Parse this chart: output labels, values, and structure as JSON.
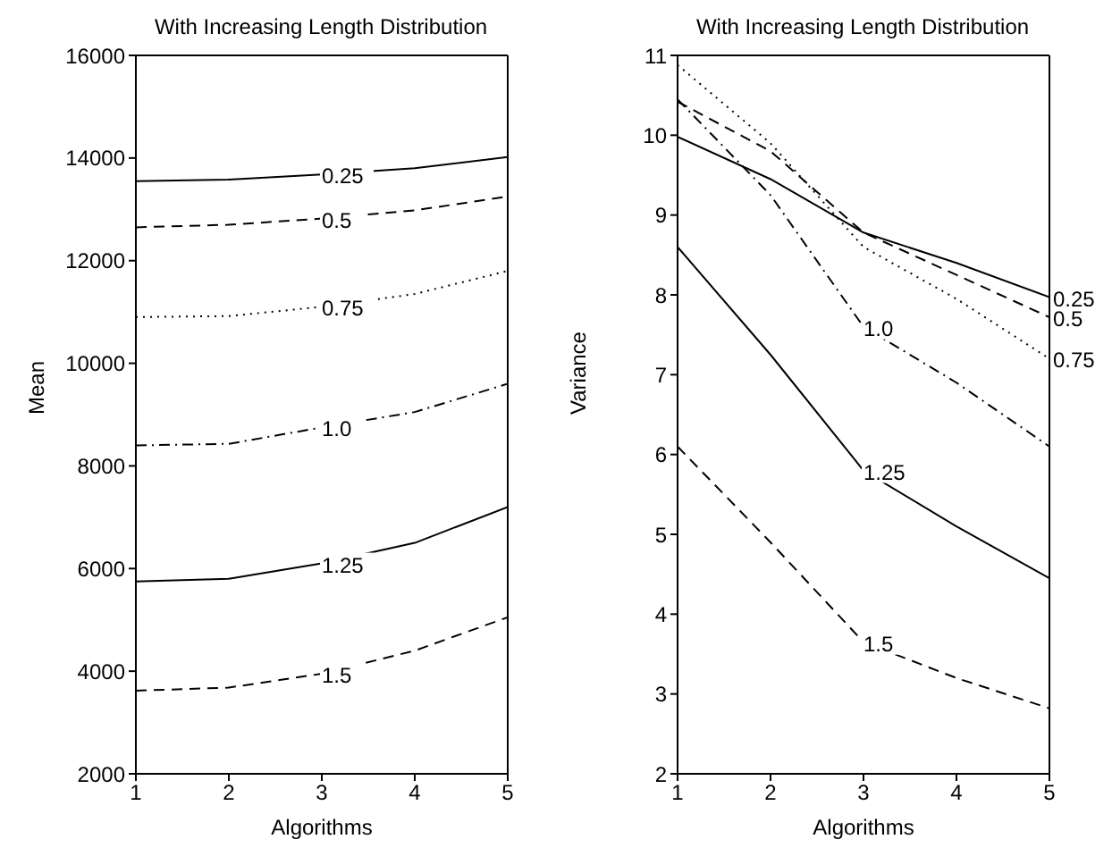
{
  "chart_data": [
    {
      "type": "line",
      "title": "With Increasing Length Distribution",
      "xlabel": "Algorithms",
      "ylabel": "Mean",
      "x": [
        1,
        2,
        3,
        4,
        5
      ],
      "xlim": [
        1,
        5
      ],
      "xticks": [
        1,
        2,
        3,
        4,
        5
      ],
      "ylim": [
        2000,
        16000
      ],
      "yticks": [
        2000,
        4000,
        6000,
        8000,
        10000,
        12000,
        14000,
        16000
      ],
      "series": [
        {
          "name": "0.25",
          "color": "#000000",
          "line_style": "solid",
          "values": [
            13550,
            13580,
            13680,
            13800,
            14020
          ]
        },
        {
          "name": "0.5",
          "color": "#000000",
          "line_style": "dashed",
          "values": [
            12650,
            12700,
            12820,
            12980,
            13250
          ]
        },
        {
          "name": "0.75",
          "color": "#000000",
          "line_style": "dotted",
          "values": [
            10900,
            10920,
            11100,
            11350,
            11800
          ]
        },
        {
          "name": "1.0",
          "color": "#000000",
          "line_style": "dashdot",
          "values": [
            8400,
            8430,
            8750,
            9050,
            9600
          ]
        },
        {
          "name": "1.25",
          "color": "#000000",
          "line_style": "solid",
          "values": [
            5750,
            5800,
            6100,
            6500,
            7200
          ]
        },
        {
          "name": "1.5",
          "color": "#000000",
          "line_style": "dashed",
          "values": [
            3620,
            3680,
            3950,
            4400,
            5050
          ]
        }
      ]
    },
    {
      "type": "line",
      "title": "With Increasing Length Distribution",
      "xlabel": "Algorithms",
      "ylabel": "Variance",
      "x": [
        1,
        2,
        3,
        4,
        5
      ],
      "xlim": [
        1,
        5
      ],
      "xticks": [
        1,
        2,
        3,
        4,
        5
      ],
      "ylim": [
        2,
        11
      ],
      "yticks": [
        2,
        3,
        4,
        5,
        6,
        7,
        8,
        9,
        10,
        11
      ],
      "series": [
        {
          "name": "0.25",
          "color": "#000000",
          "line_style": "solid",
          "values": [
            9.98,
            9.45,
            8.78,
            8.4,
            7.97
          ]
        },
        {
          "name": "0.5",
          "color": "#000000",
          "line_style": "dashed",
          "values": [
            10.42,
            9.8,
            8.78,
            8.25,
            7.72
          ]
        },
        {
          "name": "0.75",
          "color": "#000000",
          "line_style": "dotted",
          "values": [
            10.88,
            9.9,
            8.6,
            7.95,
            7.2
          ]
        },
        {
          "name": "1.0",
          "color": "#000000",
          "line_style": "dashdot",
          "values": [
            10.45,
            9.25,
            7.6,
            6.9,
            6.1
          ]
        },
        {
          "name": "1.25",
          "color": "#000000",
          "line_style": "solid",
          "values": [
            8.6,
            7.25,
            5.8,
            5.1,
            4.45
          ]
        },
        {
          "name": "1.5",
          "color": "#000000",
          "line_style": "dashed",
          "values": [
            6.1,
            4.9,
            3.65,
            3.2,
            2.82
          ]
        }
      ]
    }
  ]
}
